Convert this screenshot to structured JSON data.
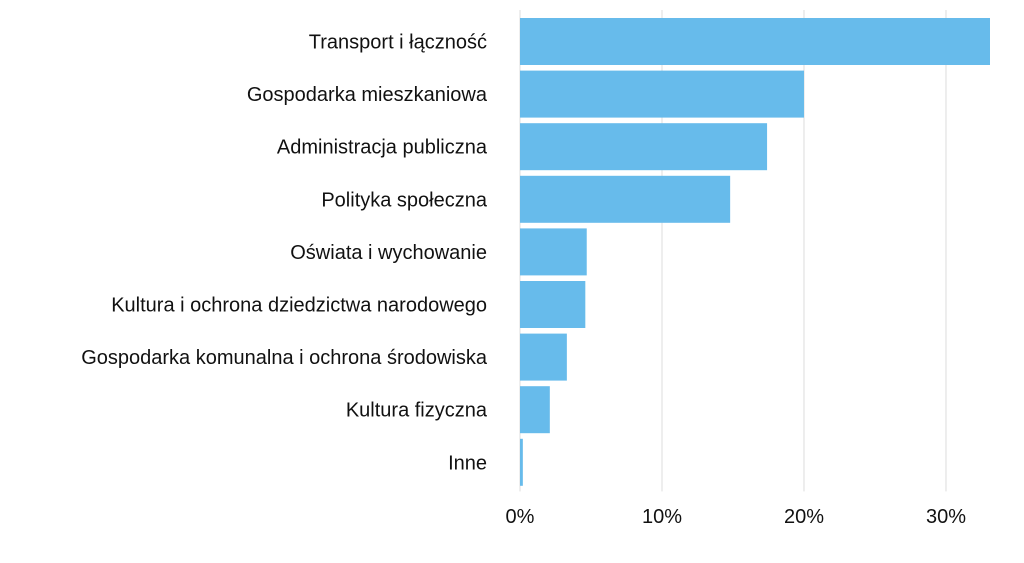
{
  "chart_data": {
    "type": "bar",
    "orientation": "horizontal",
    "title": "",
    "xlabel": "",
    "ylabel": "",
    "bar_color": "#67BBEB",
    "categories": [
      "Transport i łączność",
      "Gospodarka mieszkaniowa",
      "Administracja publiczna",
      "Polityka społeczna",
      "Oświata i wychowanie",
      "Kultura i ochrona dziedzictwa narodowego",
      "Gospodarka komunalna i ochrona środowiska",
      "Kultura fizyczna",
      "Inne"
    ],
    "values": [
      33.1,
      20.0,
      17.4,
      14.8,
      4.7,
      4.6,
      3.3,
      2.1,
      0.2
    ],
    "xlim": [
      0,
      33.1
    ],
    "x_ticks": [
      0,
      10,
      20,
      30
    ],
    "x_tick_labels": [
      "0%",
      "10%",
      "20%",
      "30%"
    ],
    "grid": "vertical",
    "legend": "none"
  }
}
